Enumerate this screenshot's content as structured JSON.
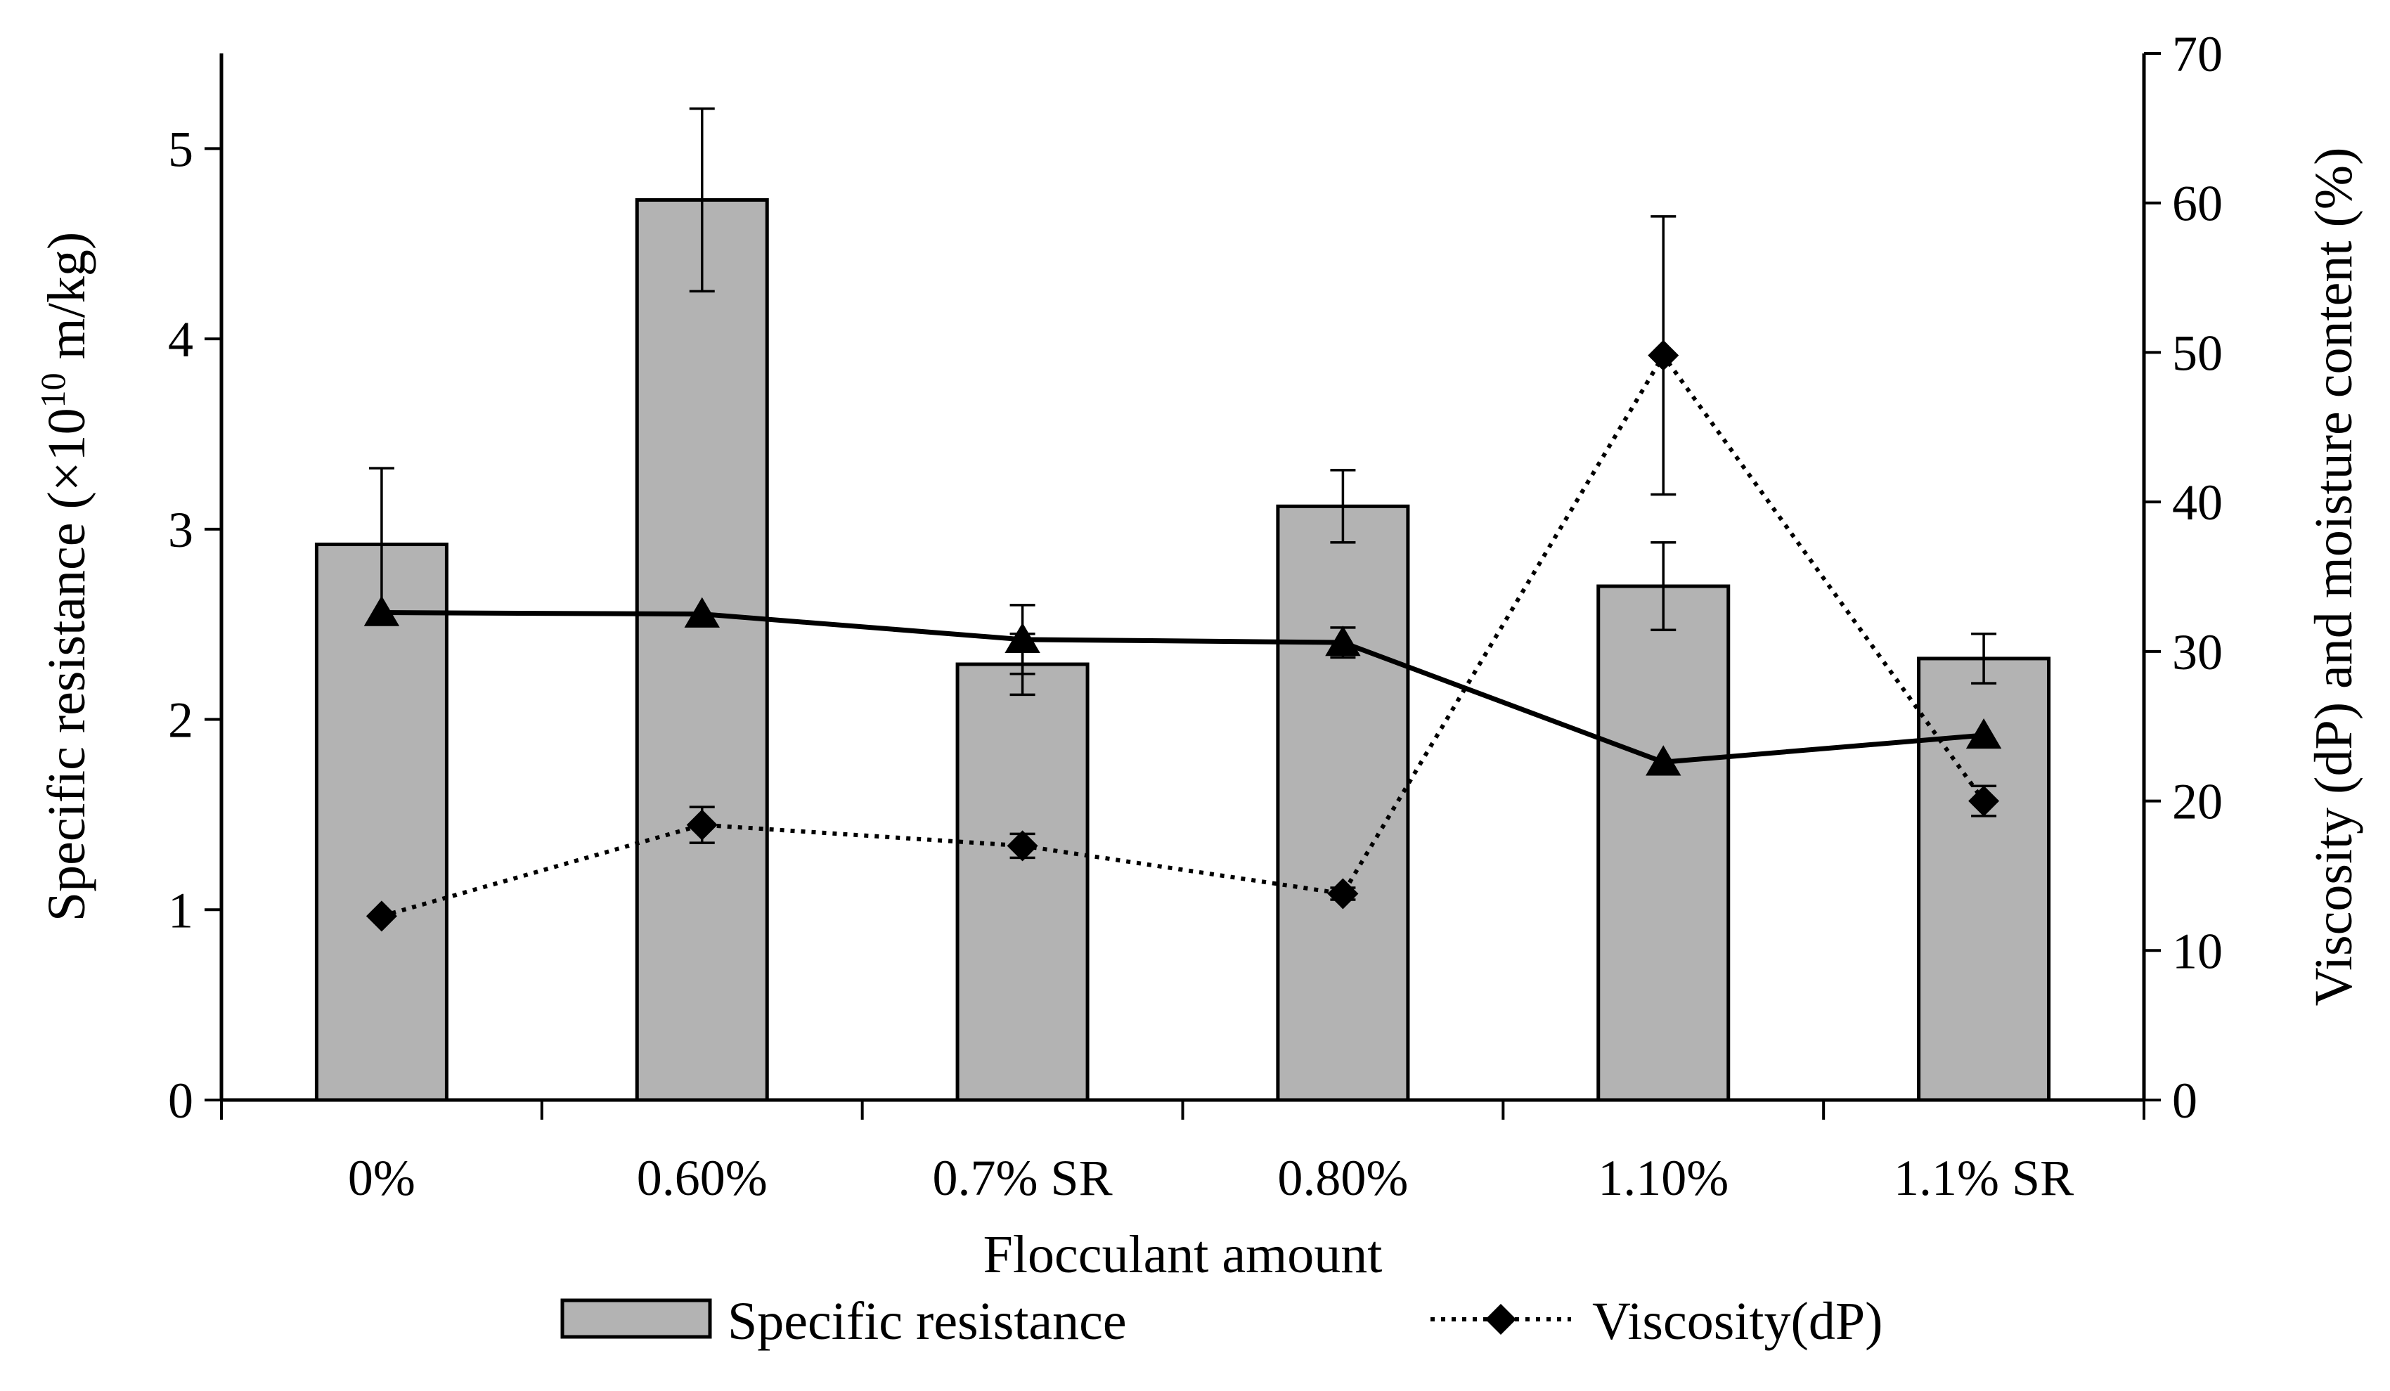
{
  "chart_data": {
    "type": "bar",
    "title": "",
    "categories": [
      "0%",
      "0.60%",
      "0.7% SR",
      "0.80%",
      "1.10%",
      "1.1% SR"
    ],
    "xlabel": "Flocculant amount",
    "ylabel_left": {
      "main": "Specific resistance (×10",
      "sup": "10",
      "end": " m/kg)"
    },
    "ylabel_right": "Viscosity (dP) and moisture content (%)",
    "y_left": {
      "min": 0,
      "max": 5.5,
      "ticks": [
        0,
        1,
        2,
        3,
        4,
        5
      ]
    },
    "y_right": {
      "min": 0,
      "max": 70,
      "ticks": [
        0,
        10,
        20,
        30,
        40,
        50,
        60,
        70
      ]
    },
    "legend_position": "bottom",
    "grid": false,
    "series": [
      {
        "name": "Specific resistance",
        "kind": "bar",
        "axis": "left",
        "color": "#b3b3b3",
        "values": [
          2.92,
          4.73,
          2.29,
          3.12,
          2.7,
          2.32
        ],
        "errors": [
          0.4,
          0.48,
          0.16,
          0.19,
          0.23,
          0.13
        ]
      },
      {
        "name": "Viscosity(dP)",
        "kind": "line",
        "style": "dotted",
        "marker": "diamond",
        "axis": "right",
        "color": "#000000",
        "values": [
          12.3,
          18.4,
          17.0,
          13.8,
          49.8,
          20.0
        ],
        "errors": [
          0.0,
          1.2,
          0.8,
          0.4,
          9.3,
          1.0
        ]
      },
      {
        "kind": "line",
        "style": "solid",
        "marker": "triangle",
        "axis": "right",
        "color": "#000000",
        "values": [
          32.6,
          32.5,
          30.8,
          30.6,
          22.6,
          24.4
        ],
        "errors": [
          0.0,
          0.0,
          2.3,
          1.0,
          0.0,
          0.0
        ]
      }
    ]
  }
}
